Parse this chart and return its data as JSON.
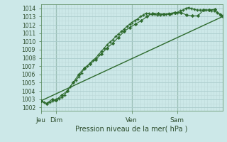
{
  "background_color": "#cce8e8",
  "grid_color_major": "#aacccc",
  "grid_color_minor": "#bcd8d8",
  "line_color": "#2d6a2d",
  "line_color2": "#336633",
  "title": "Pression niveau de la mer( hPa )",
  "ylabel_values": [
    1002,
    1003,
    1004,
    1005,
    1006,
    1007,
    1008,
    1009,
    1010,
    1011,
    1012,
    1013,
    1014
  ],
  "ylim": [
    1001.6,
    1014.5
  ],
  "day_ticks": [
    0,
    16,
    48,
    96,
    144
  ],
  "day_labels": [
    "Jeu",
    "Dim",
    "Ven",
    "Sam"
  ],
  "xlim": [
    0,
    192
  ],
  "series1_x": [
    0,
    3,
    6,
    9,
    12,
    15,
    16,
    19,
    22,
    25,
    28,
    31,
    34,
    37,
    40,
    43,
    46,
    49,
    52,
    55,
    58,
    61,
    64,
    67,
    70,
    73,
    76,
    79,
    82,
    85,
    88,
    91,
    94,
    96,
    99,
    102,
    105,
    108,
    111,
    114,
    117,
    120,
    123,
    126,
    129,
    132,
    135,
    138,
    141,
    144,
    147,
    150,
    153,
    156,
    159,
    162,
    165,
    168,
    171,
    174,
    177,
    180,
    183,
    186,
    189,
    192
  ],
  "series1_y": [
    1002.8,
    1002.6,
    1002.5,
    1002.6,
    1002.8,
    1002.9,
    1003.0,
    1003.1,
    1003.2,
    1003.5,
    1004.0,
    1004.5,
    1005.0,
    1005.3,
    1005.7,
    1006.2,
    1006.7,
    1007.0,
    1007.4,
    1007.7,
    1008.0,
    1008.4,
    1008.8,
    1009.2,
    1009.6,
    1009.9,
    1010.2,
    1010.6,
    1010.9,
    1011.2,
    1011.5,
    1011.8,
    1012.1,
    1012.3,
    1012.5,
    1012.7,
    1013.0,
    1013.2,
    1013.4,
    1013.4,
    1013.3,
    1013.3,
    1013.2,
    1013.2,
    1013.3,
    1013.3,
    1013.4,
    1013.4,
    1013.5,
    1013.5,
    1013.7,
    1013.8,
    1014.0,
    1014.1,
    1014.0,
    1013.9,
    1013.8,
    1013.8,
    1013.8,
    1013.8,
    1013.8,
    1013.7,
    1013.7,
    1013.5,
    1013.3,
    1013.1
  ],
  "series2_x": [
    0,
    6,
    12,
    16,
    22,
    28,
    34,
    40,
    46,
    52,
    58,
    64,
    70,
    76,
    82,
    88,
    94,
    100,
    106,
    112,
    118,
    124,
    130,
    136,
    142,
    148,
    154,
    160,
    166,
    172,
    178,
    184,
    190,
    192
  ],
  "series2_y": [
    1002.8,
    1002.5,
    1003.0,
    1002.9,
    1003.5,
    1004.0,
    1005.0,
    1006.0,
    1006.8,
    1007.3,
    1007.8,
    1008.5,
    1009.2,
    1009.8,
    1010.5,
    1011.2,
    1011.7,
    1012.1,
    1012.5,
    1013.0,
    1013.4,
    1013.4,
    1013.3,
    1013.3,
    1013.5,
    1013.5,
    1013.2,
    1013.1,
    1013.1,
    1013.8,
    1013.8,
    1013.9,
    1013.2,
    1013.0
  ],
  "series3_x": [
    0,
    192
  ],
  "series3_y": [
    1002.8,
    1013.0
  ]
}
